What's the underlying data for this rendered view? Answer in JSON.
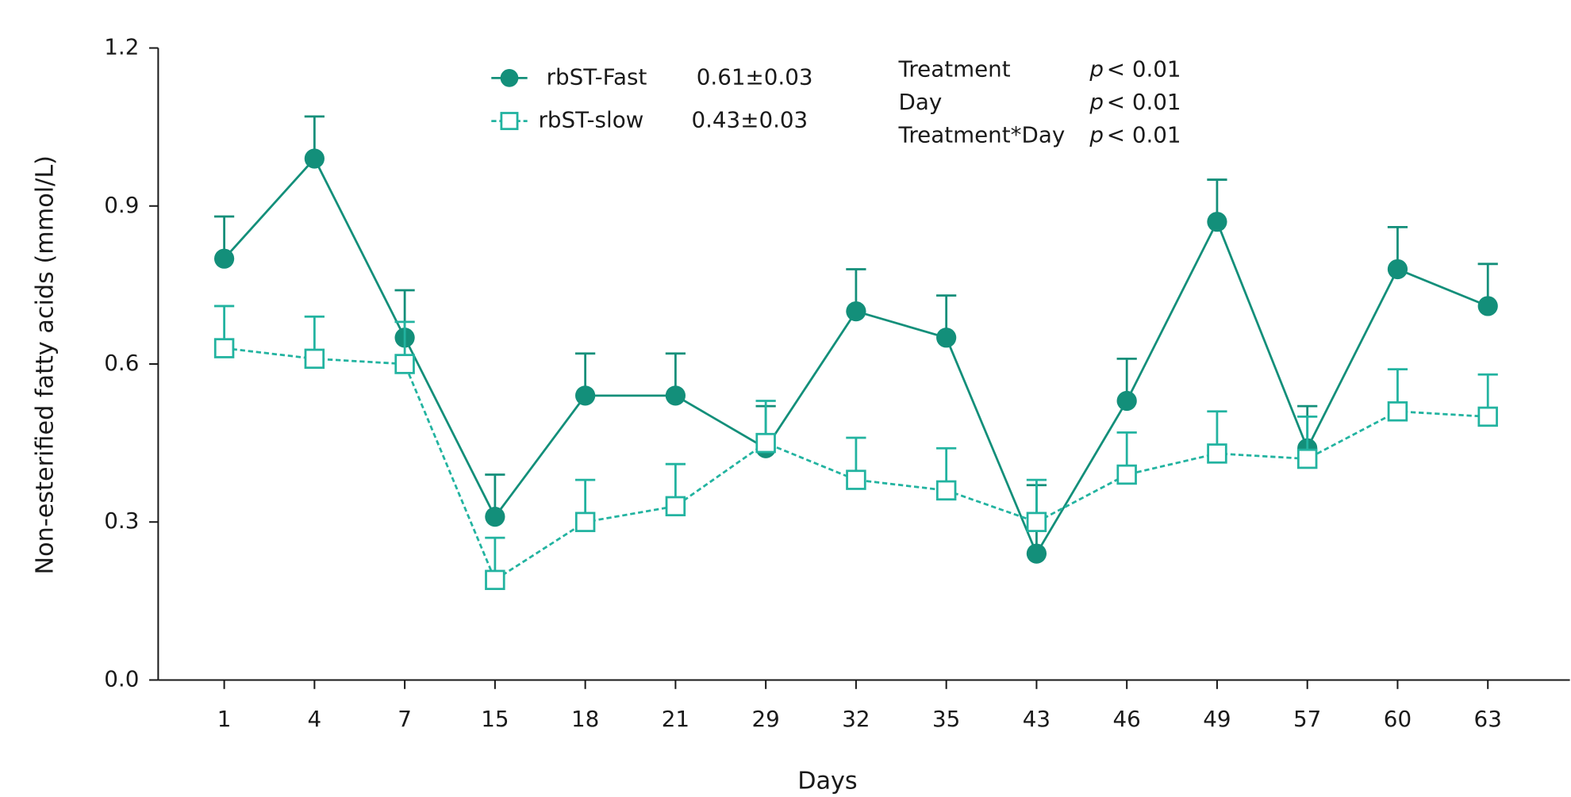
{
  "chart_data": {
    "type": "line",
    "x_label": "Days",
    "y_label": "Non-esterified fatty acids (mmol/L)",
    "categories": [
      "1",
      "4",
      "7",
      "15",
      "18",
      "21",
      "29",
      "32",
      "35",
      "43",
      "46",
      "49",
      "57",
      "60",
      "63"
    ],
    "ylim": [
      0,
      1.2
    ],
    "yticks": [
      {
        "value": 0,
        "label": "0.0"
      },
      0.3,
      0.6,
      0.9,
      1.2
    ],
    "series": [
      {
        "name": "rbST-Fast",
        "summary": "0.61±0.03",
        "color": "#138f7a",
        "marker": "filled-circle",
        "line": "solid",
        "values": [
          0.8,
          0.99,
          0.65,
          0.31,
          0.54,
          0.54,
          0.44,
          0.7,
          0.65,
          0.24,
          0.53,
          0.87,
          0.44,
          0.78,
          0.71
        ],
        "errors": [
          0.08,
          0.08,
          0.09,
          0.08,
          0.08,
          0.08,
          0.08,
          0.08,
          0.08,
          0.13,
          0.08,
          0.08,
          0.08,
          0.08,
          0.08
        ]
      },
      {
        "name": "rbST-slow",
        "summary": "0.43±0.03",
        "color": "#22b3a0",
        "marker": "open-square",
        "line": "dashed",
        "values": [
          0.63,
          0.61,
          0.6,
          0.19,
          0.3,
          0.33,
          0.45,
          0.38,
          0.36,
          0.3,
          0.39,
          0.43,
          0.42,
          0.51,
          0.5
        ],
        "errors": [
          0.08,
          0.08,
          0.08,
          0.08,
          0.08,
          0.08,
          0.08,
          0.08,
          0.08,
          0.08,
          0.08,
          0.08,
          0.08,
          0.08,
          0.08
        ]
      }
    ],
    "annotations": [
      {
        "label": "Treatment",
        "symbol": "p",
        "text": "< 0.01"
      },
      {
        "label": "Day",
        "symbol": "p",
        "text": "< 0.01"
      },
      {
        "label": "Treatment*Day",
        "symbol": "p",
        "text": "< 0.01"
      }
    ]
  }
}
